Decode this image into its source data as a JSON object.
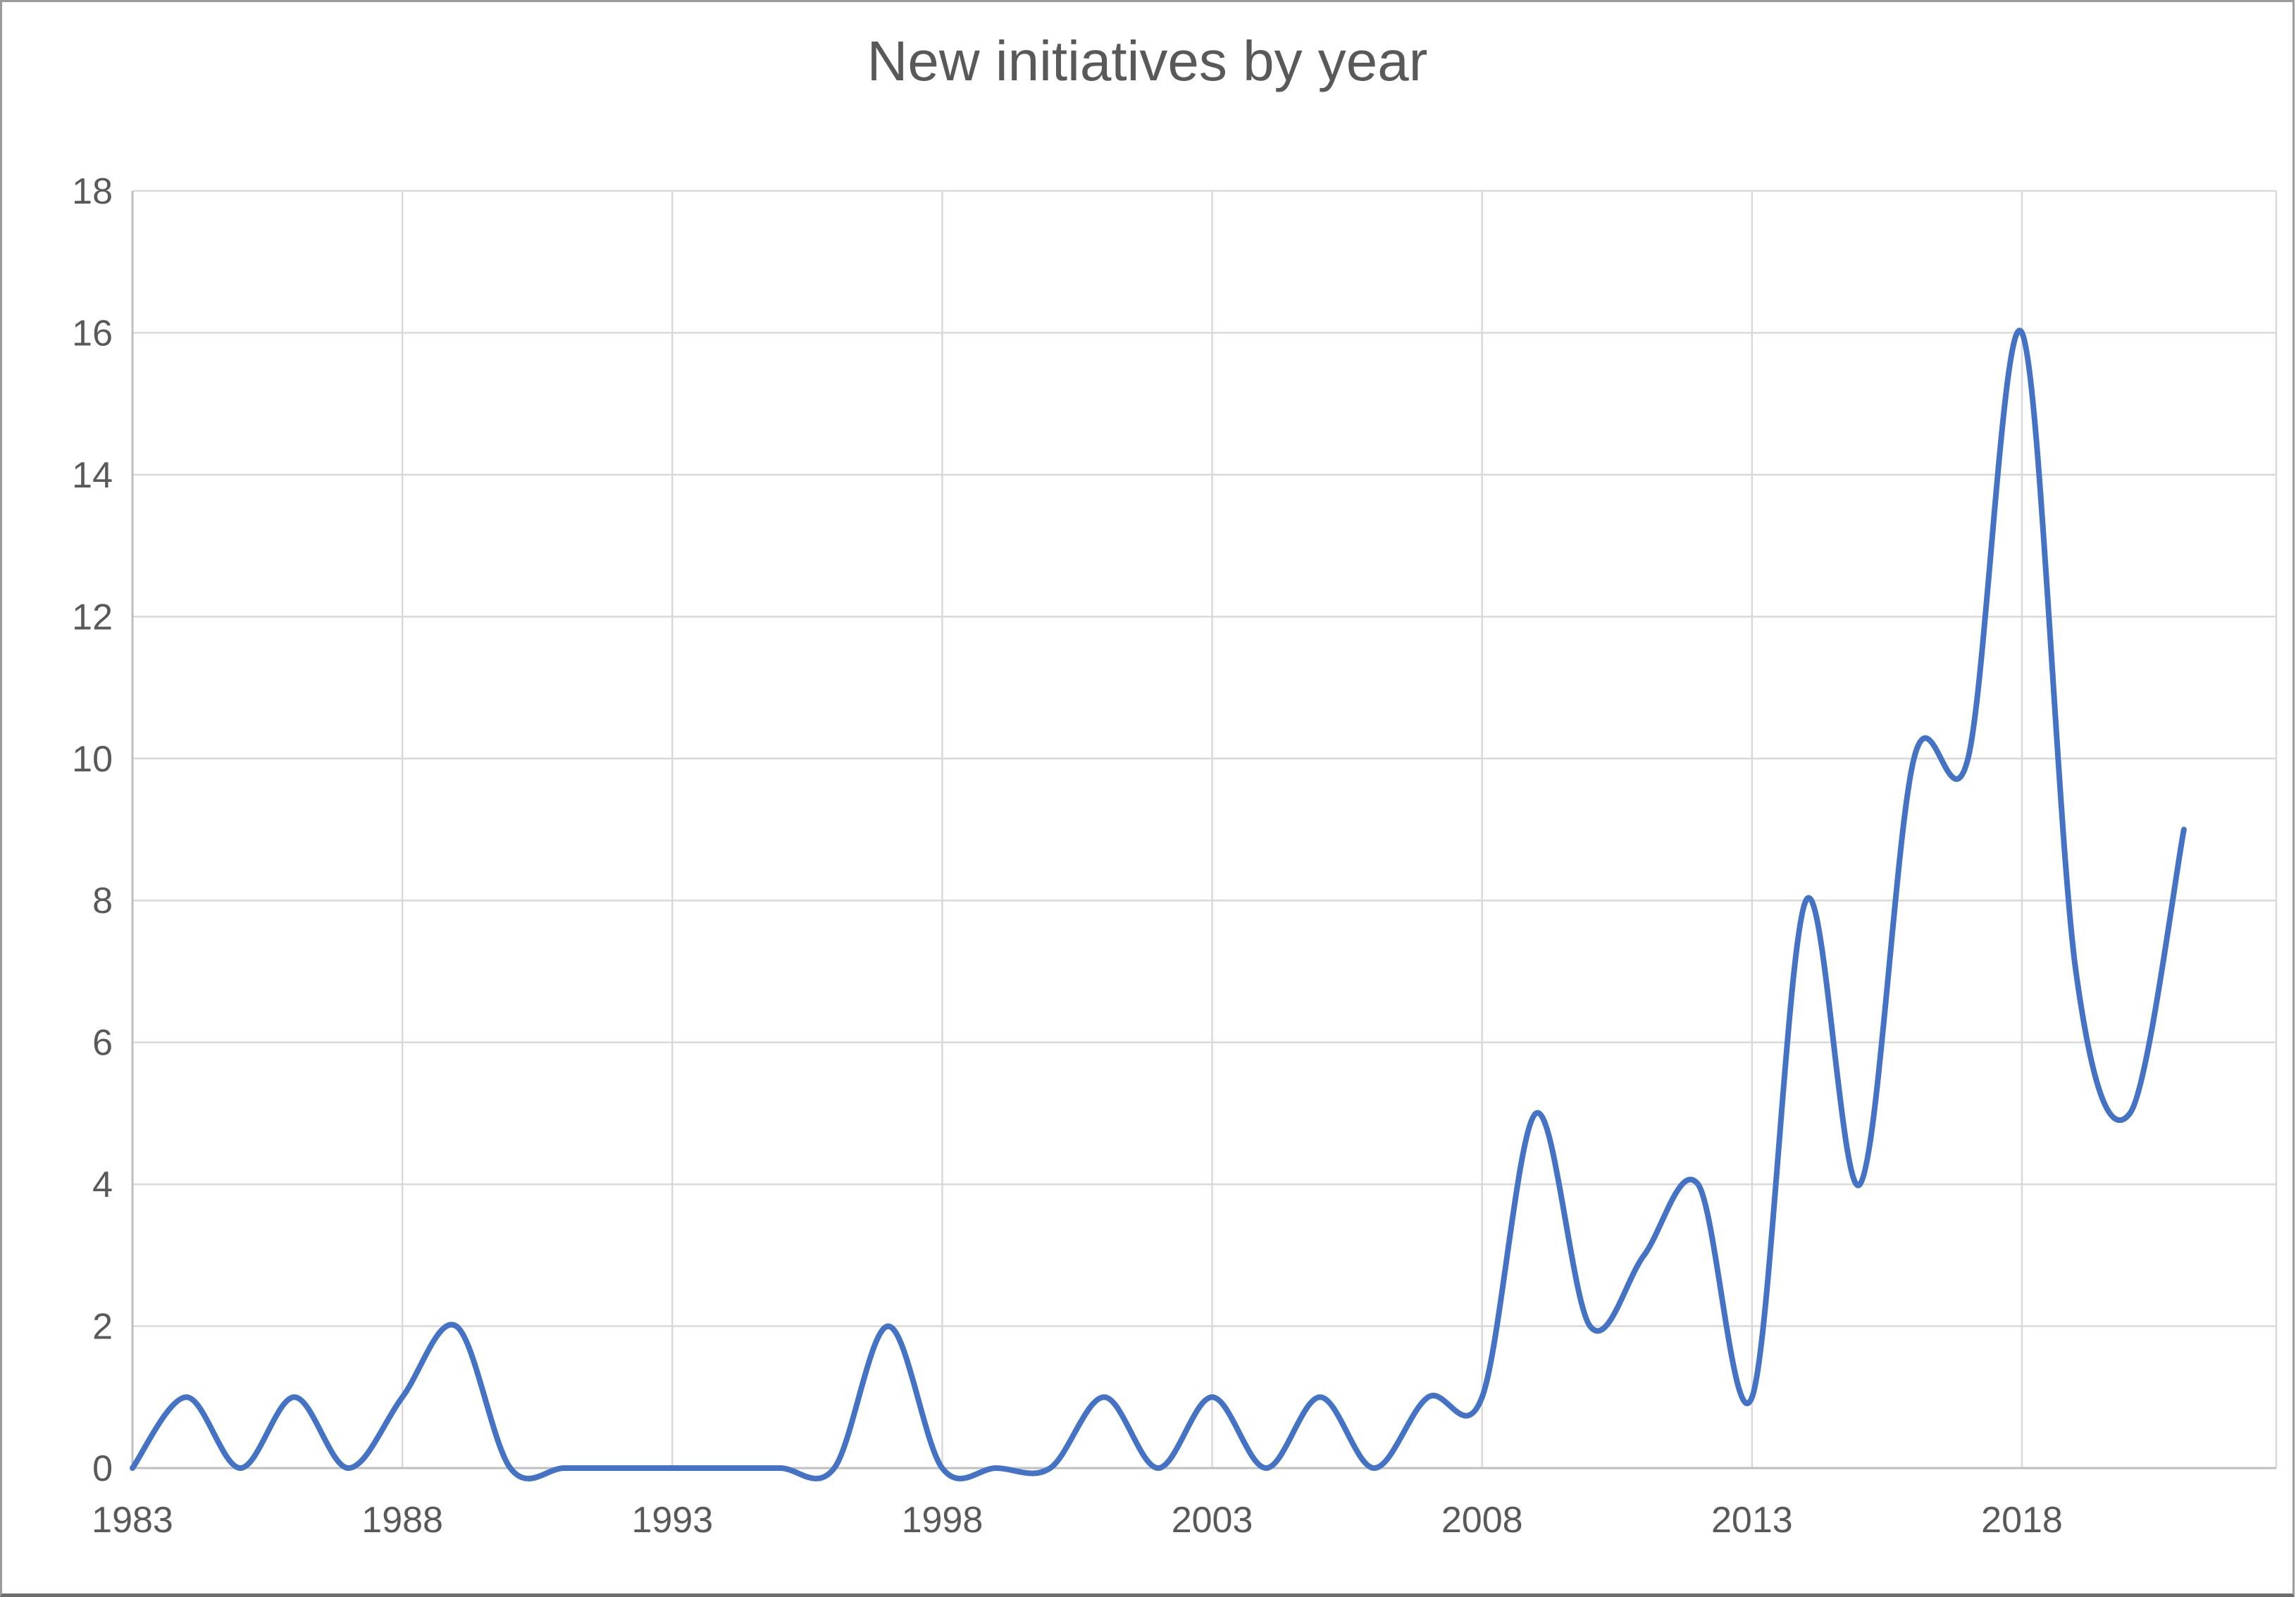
{
  "chart_data": {
    "type": "line",
    "title": "New initiatives by year",
    "xlabel": "",
    "ylabel": "",
    "smoothed": true,
    "grid": true,
    "legend_position": "none",
    "ylim": [
      0,
      18
    ],
    "y_ticks": [
      0,
      2,
      4,
      6,
      8,
      10,
      12,
      14,
      16,
      18
    ],
    "x_tick_labels": [
      "1983",
      "1988",
      "1993",
      "1998",
      "2003",
      "2008",
      "2013",
      "2018"
    ],
    "x_tick_years": [
      1983,
      1988,
      1993,
      1998,
      2003,
      2008,
      2013,
      2018
    ],
    "x_start_year": 1983,
    "x": [
      1983,
      1984,
      1985,
      1986,
      1987,
      1988,
      1989,
      1990,
      1991,
      1992,
      1993,
      1994,
      1995,
      1996,
      1997,
      1998,
      1999,
      2000,
      2001,
      2002,
      2003,
      2004,
      2005,
      2006,
      2007,
      2008,
      2009,
      2010,
      2011,
      2012,
      2013,
      2014,
      2015,
      2016,
      2017,
      2018,
      2019,
      2020,
      2021
    ],
    "values": [
      0,
      1,
      0,
      1,
      0,
      1,
      2,
      0,
      0,
      0,
      0,
      0,
      0,
      0,
      2,
      0,
      0,
      0,
      1,
      0,
      1,
      0,
      1,
      0,
      1,
      1,
      5,
      2,
      3,
      4,
      1,
      8,
      4,
      10,
      10,
      16,
      7,
      5,
      9
    ],
    "colors": {
      "line": "#4472C4",
      "gridline": "#D9D9D9",
      "plot_border": "#D9D9D9",
      "axis_line": "#BFBFBF",
      "tick_text": "#595959",
      "title_text": "#595959",
      "background": "#FFFFFF"
    }
  }
}
